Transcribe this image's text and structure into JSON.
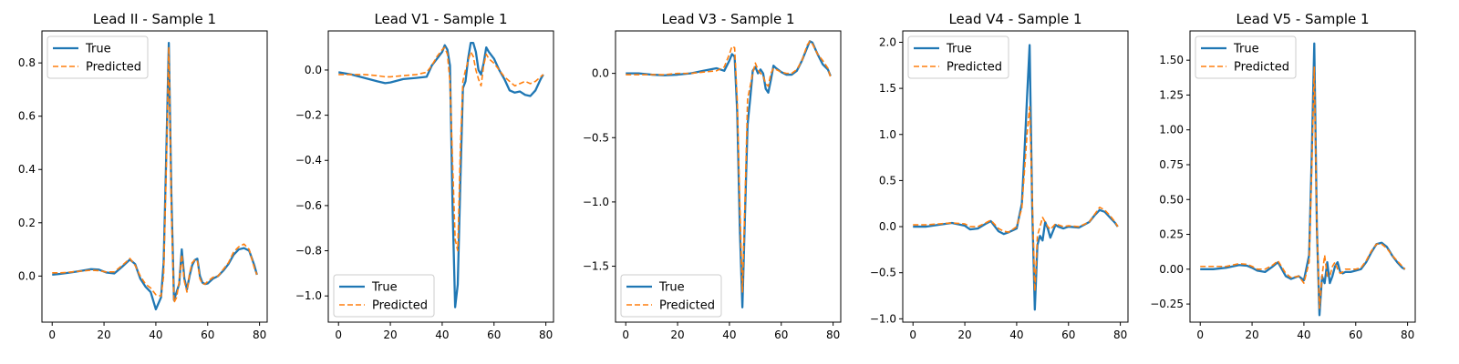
{
  "colors": {
    "true_series": "#1f77b4",
    "predicted_series": "#ff7f0e"
  },
  "chart_data": [
    {
      "type": "line",
      "title": "Lead II - Sample 1",
      "xlabel": "",
      "ylabel": "",
      "xlim": [
        -3.95,
        82.95
      ],
      "ylim": [
        -0.173,
        0.92
      ],
      "xticks": [
        0,
        20,
        40,
        60,
        80
      ],
      "yticks": [
        0.0,
        0.2,
        0.4,
        0.6,
        0.8
      ],
      "ytick_labels": [
        "0.0",
        "0.2",
        "0.4",
        "0.6",
        "0.8"
      ],
      "legend": "upper-left",
      "grid": false,
      "series": [
        {
          "name": "True",
          "style": "solid",
          "x": [
            0,
            3,
            6,
            9,
            12,
            15,
            18,
            21,
            24,
            27,
            30,
            32,
            34,
            36,
            38,
            40,
            42,
            43,
            44,
            45,
            46,
            47,
            48,
            49,
            50,
            51,
            52,
            53,
            54,
            55,
            56,
            57,
            58,
            59,
            60,
            62,
            64,
            66,
            68,
            70,
            72,
            74,
            76,
            78,
            79
          ],
          "y": [
            0.005,
            0.008,
            0.012,
            0.016,
            0.021,
            0.026,
            0.024,
            0.013,
            0.01,
            0.035,
            0.062,
            0.045,
            -0.01,
            -0.04,
            -0.06,
            -0.125,
            -0.08,
            0.05,
            0.45,
            0.875,
            0.3,
            -0.09,
            -0.06,
            -0.03,
            0.1,
            -0.01,
            -0.05,
            0.0,
            0.04,
            0.06,
            0.065,
            0.0,
            -0.025,
            -0.03,
            -0.028,
            -0.01,
            0.0,
            0.02,
            0.045,
            0.08,
            0.1,
            0.105,
            0.095,
            0.04,
            0.005
          ]
        },
        {
          "name": "Predicted",
          "style": "dashed",
          "x": [
            0,
            3,
            6,
            9,
            12,
            15,
            18,
            21,
            24,
            27,
            30,
            32,
            34,
            36,
            38,
            40,
            42,
            43,
            44,
            45,
            46,
            47,
            48,
            49,
            50,
            51,
            52,
            53,
            54,
            55,
            56,
            57,
            58,
            59,
            60,
            62,
            64,
            66,
            68,
            70,
            72,
            74,
            76,
            78,
            79
          ],
          "y": [
            0.012,
            0.012,
            0.014,
            0.017,
            0.019,
            0.022,
            0.02,
            0.015,
            0.016,
            0.04,
            0.066,
            0.04,
            0.0,
            -0.03,
            -0.045,
            -0.07,
            -0.075,
            0.0,
            0.4,
            0.86,
            0.25,
            -0.1,
            -0.08,
            -0.02,
            0.08,
            -0.02,
            -0.06,
            0.01,
            0.05,
            0.06,
            0.06,
            -0.01,
            -0.03,
            -0.03,
            -0.02,
            -0.005,
            0.0,
            0.025,
            0.05,
            0.09,
            0.11,
            0.12,
            0.1,
            0.03,
            0.005
          ]
        }
      ]
    },
    {
      "type": "line",
      "title": "Lead V1 - Sample 1",
      "xlabel": "",
      "ylabel": "",
      "xlim": [
        -3.95,
        82.95
      ],
      "ylim": [
        -1.116,
        0.173
      ],
      "xticks": [
        0,
        20,
        40,
        60,
        80
      ],
      "yticks": [
        0.0,
        -0.2,
        -0.4,
        -0.6,
        -0.8,
        -1.0
      ],
      "ytick_labels": [
        "0.0",
        "−0.2",
        "−0.4",
        "−0.6",
        "−0.8",
        "−1.0"
      ],
      "legend": "lower-left",
      "grid": false,
      "series": [
        {
          "name": "True",
          "style": "solid",
          "x": [
            0,
            5,
            10,
            15,
            18,
            20,
            25,
            30,
            34,
            36,
            38,
            40,
            41,
            42,
            43,
            44,
            45,
            46,
            47,
            48,
            49,
            50,
            51,
            52,
            53,
            54,
            55,
            56,
            57,
            58,
            60,
            62,
            64,
            66,
            68,
            70,
            72,
            74,
            76,
            78,
            79
          ],
          "y": [
            -0.01,
            -0.02,
            -0.035,
            -0.05,
            -0.058,
            -0.055,
            -0.04,
            -0.035,
            -0.03,
            0.02,
            0.05,
            0.08,
            0.11,
            0.09,
            0.02,
            -0.6,
            -1.05,
            -0.95,
            -0.5,
            -0.08,
            -0.05,
            0.05,
            0.12,
            0.12,
            0.08,
            0.0,
            -0.02,
            0.03,
            0.1,
            0.08,
            0.05,
            0.0,
            -0.04,
            -0.09,
            -0.1,
            -0.095,
            -0.11,
            -0.115,
            -0.09,
            -0.04,
            -0.02
          ]
        },
        {
          "name": "Predicted",
          "style": "dashed",
          "x": [
            0,
            5,
            10,
            15,
            18,
            20,
            25,
            30,
            34,
            36,
            38,
            40,
            41,
            42,
            43,
            44,
            45,
            46,
            47,
            48,
            49,
            50,
            51,
            52,
            53,
            54,
            55,
            56,
            57,
            58,
            60,
            62,
            64,
            66,
            68,
            70,
            72,
            74,
            76,
            78,
            79
          ],
          "y": [
            -0.02,
            -0.02,
            -0.02,
            -0.025,
            -0.03,
            -0.03,
            -0.025,
            -0.02,
            -0.01,
            0.02,
            0.06,
            0.09,
            0.1,
            0.07,
            -0.05,
            -0.4,
            -0.75,
            -0.8,
            -0.35,
            -0.05,
            0.0,
            0.04,
            0.08,
            0.06,
            0.0,
            -0.04,
            -0.07,
            0.02,
            0.07,
            0.05,
            0.03,
            0.0,
            -0.03,
            -0.05,
            -0.07,
            -0.06,
            -0.05,
            -0.06,
            -0.05,
            -0.03,
            -0.02
          ]
        }
      ]
    },
    {
      "type": "line",
      "title": "Lead V3 - Sample 1",
      "xlabel": "",
      "ylabel": "",
      "xlim": [
        -3.95,
        82.95
      ],
      "ylim": [
        -1.935,
        0.33
      ],
      "xticks": [
        0,
        20,
        40,
        60,
        80
      ],
      "yticks": [
        0.0,
        -0.5,
        -1.0,
        -1.5
      ],
      "ytick_labels": [
        "0.0",
        "−0.5",
        "−1.0",
        "−1.5"
      ],
      "legend": "lower-left",
      "grid": false,
      "series": [
        {
          "name": "True",
          "style": "solid",
          "x": [
            0,
            5,
            10,
            15,
            20,
            25,
            30,
            35,
            38,
            40,
            41,
            42,
            43,
            44,
            45,
            46,
            47,
            48,
            49,
            50,
            51,
            52,
            53,
            54,
            55,
            56,
            57,
            58,
            60,
            62,
            64,
            66,
            68,
            70,
            71,
            72,
            74,
            76,
            78,
            79
          ],
          "y": [
            0.0,
            0.0,
            -0.01,
            -0.015,
            -0.01,
            0.0,
            0.02,
            0.04,
            0.02,
            0.1,
            0.15,
            0.13,
            -0.3,
            -1.2,
            -1.82,
            -1.1,
            -0.4,
            -0.2,
            0.02,
            0.05,
            0.0,
            0.03,
            0.0,
            -0.12,
            -0.15,
            -0.05,
            0.06,
            0.04,
            0.01,
            -0.01,
            -0.01,
            0.02,
            0.1,
            0.2,
            0.25,
            0.24,
            0.15,
            0.07,
            0.03,
            -0.02
          ]
        },
        {
          "name": "Predicted",
          "style": "dashed",
          "x": [
            0,
            5,
            10,
            15,
            20,
            25,
            30,
            35,
            38,
            40,
            41,
            42,
            43,
            44,
            45,
            46,
            47,
            48,
            49,
            50,
            51,
            52,
            53,
            54,
            55,
            56,
            57,
            58,
            60,
            62,
            64,
            66,
            68,
            70,
            71,
            72,
            74,
            76,
            78,
            79
          ],
          "y": [
            -0.01,
            -0.01,
            -0.01,
            -0.01,
            0.0,
            0.0,
            0.01,
            0.02,
            0.05,
            0.15,
            0.21,
            0.2,
            -0.2,
            -1.0,
            -1.7,
            -1.0,
            -0.2,
            -0.1,
            0.0,
            0.08,
            0.03,
            0.0,
            -0.02,
            -0.08,
            -0.1,
            0.0,
            0.04,
            0.03,
            0.01,
            0.0,
            0.0,
            0.03,
            0.1,
            0.22,
            0.25,
            0.23,
            0.15,
            0.1,
            0.04,
            -0.03
          ]
        }
      ]
    },
    {
      "type": "line",
      "title": "Lead V4 - Sample 1",
      "xlabel": "",
      "ylabel": "",
      "xlim": [
        -3.95,
        82.95
      ],
      "ylim": [
        -1.036,
        2.123
      ],
      "xticks": [
        0,
        20,
        40,
        60,
        80
      ],
      "yticks": [
        -1.0,
        -0.5,
        0.0,
        0.5,
        1.0,
        1.5,
        2.0
      ],
      "ytick_labels": [
        "−1.0",
        "−0.5",
        "0.0",
        "0.5",
        "1.0",
        "1.5",
        "2.0"
      ],
      "legend": "upper-left",
      "grid": false,
      "series": [
        {
          "name": "True",
          "style": "solid",
          "x": [
            0,
            5,
            10,
            15,
            20,
            22,
            25,
            28,
            30,
            33,
            35,
            37,
            40,
            42,
            43,
            44,
            45,
            46,
            47,
            48,
            49,
            50,
            51,
            52,
            53,
            54,
            55,
            56,
            58,
            60,
            64,
            68,
            70,
            72,
            74,
            76,
            78,
            79
          ],
          "y": [
            0.0,
            0.0,
            0.02,
            0.04,
            0.01,
            -0.03,
            -0.02,
            0.03,
            0.06,
            -0.05,
            -0.08,
            -0.06,
            -0.02,
            0.25,
            0.8,
            1.4,
            1.97,
            0.2,
            -0.9,
            -0.2,
            -0.1,
            -0.15,
            0.05,
            -0.02,
            -0.12,
            -0.05,
            0.02,
            0.0,
            -0.02,
            0.0,
            -0.01,
            0.05,
            0.12,
            0.18,
            0.16,
            0.1,
            0.04,
            0.0
          ]
        },
        {
          "name": "Predicted",
          "style": "dashed",
          "x": [
            0,
            5,
            10,
            15,
            20,
            22,
            25,
            28,
            30,
            33,
            35,
            37,
            40,
            42,
            43,
            44,
            45,
            46,
            47,
            48,
            49,
            50,
            51,
            52,
            53,
            54,
            55,
            56,
            58,
            60,
            64,
            68,
            70,
            72,
            74,
            76,
            78,
            79
          ],
          "y": [
            0.02,
            0.02,
            0.03,
            0.04,
            0.03,
            0.0,
            0.0,
            0.04,
            0.07,
            -0.02,
            -0.05,
            -0.06,
            0.0,
            0.2,
            0.6,
            1.0,
            1.3,
            0.3,
            -0.7,
            -0.1,
            0.0,
            0.1,
            0.05,
            0.0,
            -0.03,
            0.0,
            0.03,
            0.02,
            0.0,
            0.01,
            0.0,
            0.05,
            0.13,
            0.21,
            0.18,
            0.12,
            0.05,
            0.0
          ]
        }
      ]
    },
    {
      "type": "line",
      "title": "Lead V5 - Sample 1",
      "xlabel": "",
      "ylabel": "",
      "xlim": [
        -3.95,
        82.95
      ],
      "ylim": [
        -0.38,
        1.71
      ],
      "xticks": [
        0,
        20,
        40,
        60,
        80
      ],
      "yticks": [
        -0.25,
        0.0,
        0.25,
        0.5,
        0.75,
        1.0,
        1.25,
        1.5
      ],
      "ytick_labels": [
        "−0.25",
        "0.00",
        "0.25",
        "0.50",
        "0.75",
        "1.00",
        "1.25",
        "1.50"
      ],
      "legend": "upper-left",
      "grid": false,
      "series": [
        {
          "name": "True",
          "style": "solid",
          "x": [
            0,
            5,
            10,
            15,
            18,
            20,
            22,
            25,
            28,
            30,
            33,
            35,
            38,
            40,
            42,
            43,
            44,
            45,
            46,
            47,
            48,
            49,
            50,
            51,
            52,
            53,
            54,
            55,
            56,
            58,
            60,
            62,
            64,
            66,
            68,
            70,
            72,
            74,
            76,
            78,
            79
          ],
          "y": [
            0.0,
            0.0,
            0.01,
            0.03,
            0.025,
            0.01,
            -0.01,
            -0.02,
            0.02,
            0.05,
            -0.05,
            -0.07,
            -0.05,
            -0.08,
            0.1,
            0.8,
            1.62,
            0.3,
            -0.33,
            -0.05,
            -0.1,
            0.05,
            -0.1,
            -0.05,
            0.02,
            0.05,
            -0.02,
            -0.03,
            -0.02,
            -0.02,
            -0.01,
            0.0,
            0.05,
            0.12,
            0.18,
            0.19,
            0.16,
            0.1,
            0.05,
            0.01,
            0.0
          ]
        },
        {
          "name": "Predicted",
          "style": "dashed",
          "x": [
            0,
            5,
            10,
            15,
            18,
            20,
            22,
            25,
            28,
            30,
            33,
            35,
            38,
            40,
            42,
            43,
            44,
            45,
            46,
            47,
            48,
            49,
            50,
            51,
            52,
            53,
            54,
            55,
            56,
            58,
            60,
            62,
            64,
            66,
            68,
            70,
            72,
            74,
            76,
            78,
            79
          ],
          "y": [
            0.02,
            0.02,
            0.02,
            0.04,
            0.035,
            0.02,
            0.0,
            0.0,
            0.03,
            0.06,
            -0.03,
            -0.06,
            -0.05,
            -0.1,
            0.05,
            0.7,
            1.45,
            0.3,
            -0.28,
            -0.05,
            0.1,
            -0.05,
            -0.05,
            0.02,
            0.05,
            0.0,
            -0.03,
            -0.02,
            0.0,
            0.0,
            0.0,
            0.01,
            0.06,
            0.13,
            0.18,
            0.18,
            0.15,
            0.1,
            0.06,
            0.02,
            0.0
          ]
        }
      ]
    }
  ]
}
